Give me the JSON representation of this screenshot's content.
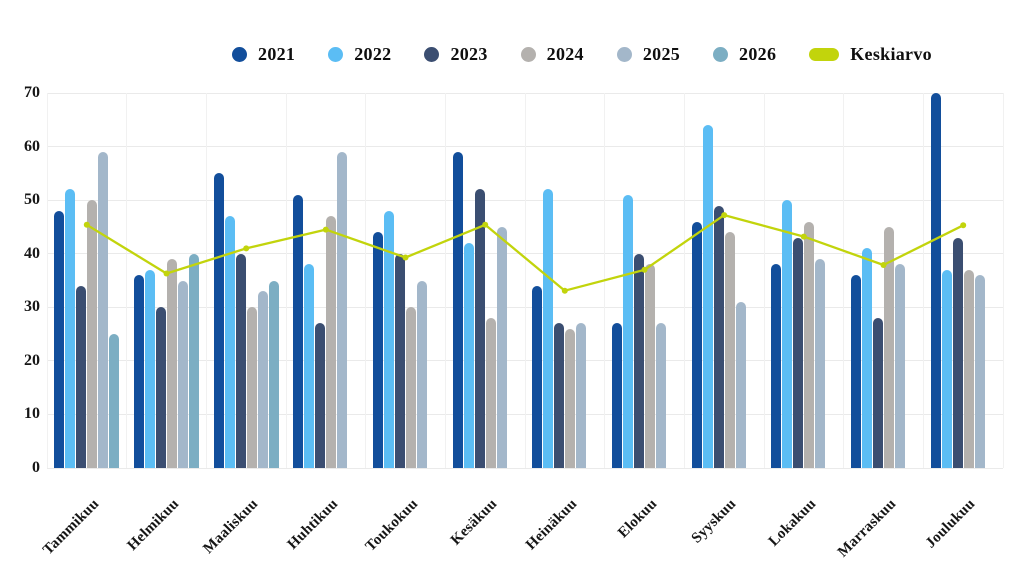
{
  "chart_data": {
    "type": "bar",
    "title": "",
    "xlabel": "",
    "ylabel": "",
    "categories": [
      "Tammikuu",
      "Helmikuu",
      "Maaliskuu",
      "Huhtikuu",
      "Toukokuu",
      "Kesäkuu",
      "Heinäkuu",
      "Elokuu",
      "Syyskuu",
      "Lokakuu",
      "Marraskuu",
      "Joulukuu"
    ],
    "series": [
      {
        "name": "2021",
        "color": "#124E9B",
        "values": [
          48,
          36,
          55,
          51,
          44,
          59,
          34,
          27,
          46,
          38,
          36,
          70
        ]
      },
      {
        "name": "2022",
        "color": "#5BBDF4",
        "values": [
          52,
          37,
          47,
          38,
          48,
          42,
          52,
          51,
          64,
          50,
          41,
          37
        ]
      },
      {
        "name": "2023",
        "color": "#3B4E71",
        "values": [
          34,
          30,
          40,
          27,
          40,
          52,
          27,
          40,
          49,
          43,
          28,
          43
        ]
      },
      {
        "name": "2024",
        "color": "#B4B1AE",
        "values": [
          50,
          39,
          30,
          47,
          30,
          28,
          26,
          38,
          44,
          46,
          45,
          37
        ]
      },
      {
        "name": "2025",
        "color": "#A3B7CA",
        "values": [
          59,
          35,
          33,
          59,
          35,
          45,
          27,
          27,
          31,
          39,
          38,
          36
        ]
      },
      {
        "name": "2026",
        "color": "#7CAEC3",
        "values": [
          25,
          40,
          35,
          null,
          null,
          null,
          null,
          null,
          null,
          null,
          null,
          null
        ]
      }
    ],
    "line_series": {
      "name": "Keskiarvo",
      "color": "#C2D40C",
      "values": [
        45.4,
        36.3,
        41.0,
        44.5,
        39.3,
        45.4,
        33.1,
        37.0,
        47.2,
        43.2,
        37.9,
        45.3
      ]
    },
    "legend_entries": [
      "2021",
      "2022",
      "2023",
      "2024",
      "2025",
      "2026",
      "Keskiarvo"
    ],
    "legend_position": "top",
    "ylim": [
      0,
      70
    ],
    "yticks": [
      0,
      10,
      20,
      30,
      40,
      50,
      60,
      70
    ],
    "grid": "horizontal light + faint vertical category separators",
    "colors": {
      "background": "#FFFFFF",
      "gridline": "#EAEAEA",
      "gridline_vertical": "#F1F1F1",
      "axis_text": "#161616",
      "legend_text": "#0F0F0F"
    }
  }
}
